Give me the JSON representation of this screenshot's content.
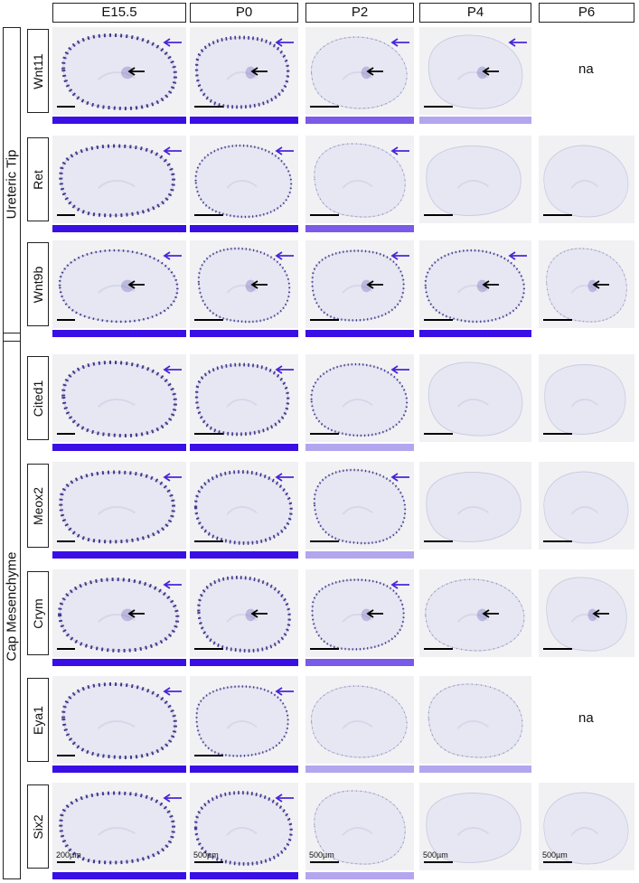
{
  "colors": {
    "strong": "#3a0fe6",
    "medium": "#7a5ae8",
    "weak": "#b3a6ef",
    "blue_arrow": "#4a26d8",
    "black_arrow": "#000000",
    "panel_bg": "#f1f1f4"
  },
  "columns": [
    "E15.5",
    "P0",
    "P2",
    "P4",
    "P6"
  ],
  "groups": [
    {
      "label": "Ureteric Tip"
    },
    {
      "label": "Cap Mesenchyme"
    }
  ],
  "rows": [
    {
      "gene": "Wnt11",
      "cells": [
        {
          "bar": "strong",
          "blue_arrow": true,
          "black_arrow": true,
          "signal": "strong",
          "scale": true
        },
        {
          "bar": "strong",
          "blue_arrow": true,
          "black_arrow": true,
          "signal": "strong",
          "scale": true
        },
        {
          "bar": "medium",
          "blue_arrow": true,
          "black_arrow": true,
          "signal": "faint",
          "scale": true
        },
        {
          "bar": "weak",
          "blue_arrow": true,
          "black_arrow": true,
          "signal": "none",
          "scale": true
        },
        {
          "na": "na"
        }
      ]
    },
    {
      "gene": "Ret",
      "cells": [
        {
          "bar": "strong",
          "blue_arrow": true,
          "signal": "strong",
          "scale": true
        },
        {
          "bar": "strong",
          "blue_arrow": true,
          "signal": "medium",
          "scale": true
        },
        {
          "bar": "medium",
          "blue_arrow": true,
          "signal": "faint",
          "scale": true
        },
        {
          "bar": null,
          "signal": "none",
          "scale": true
        },
        {
          "bar": null,
          "signal": "none",
          "scale": true
        }
      ]
    },
    {
      "gene": "Wnt9b",
      "cells": [
        {
          "bar": "strong",
          "blue_arrow": true,
          "black_arrow": true,
          "signal": "medium",
          "scale": true
        },
        {
          "bar": "strong",
          "blue_arrow": true,
          "black_arrow": true,
          "signal": "medium",
          "scale": true
        },
        {
          "bar": "strong",
          "blue_arrow": true,
          "black_arrow": true,
          "signal": "medium",
          "scale": true
        },
        {
          "bar": "strong",
          "blue_arrow": true,
          "black_arrow": true,
          "signal": "medium",
          "scale": true
        },
        {
          "bar": null,
          "black_arrow": true,
          "signal": "faint",
          "scale": true
        }
      ]
    },
    {
      "gene": "Cited1",
      "cells": [
        {
          "bar": "strong",
          "blue_arrow": true,
          "signal": "strong",
          "scale": true
        },
        {
          "bar": "strong",
          "blue_arrow": true,
          "signal": "strong",
          "scale": true
        },
        {
          "bar": "weak",
          "blue_arrow": true,
          "signal": "medium",
          "scale": true
        },
        {
          "bar": null,
          "signal": "none",
          "scale": true
        },
        {
          "bar": null,
          "signal": "none",
          "scale": true
        }
      ]
    },
    {
      "gene": "Meox2",
      "cells": [
        {
          "bar": "strong",
          "blue_arrow": true,
          "signal": "strong",
          "scale": true
        },
        {
          "bar": "strong",
          "blue_arrow": true,
          "signal": "strong",
          "scale": true
        },
        {
          "bar": "weak",
          "blue_arrow": true,
          "signal": "medium",
          "scale": true
        },
        {
          "bar": null,
          "signal": "none",
          "scale": true
        },
        {
          "bar": null,
          "signal": "none",
          "scale": true
        }
      ]
    },
    {
      "gene": "Crym",
      "cells": [
        {
          "bar": "strong",
          "blue_arrow": true,
          "black_arrow": true,
          "signal": "strong",
          "scale": true
        },
        {
          "bar": "strong",
          "black_arrow": true,
          "signal": "strong",
          "scale": true
        },
        {
          "bar": "medium",
          "blue_arrow": true,
          "black_arrow": true,
          "signal": "medium",
          "scale": true
        },
        {
          "bar": null,
          "black_arrow": true,
          "signal": "faint",
          "scale": true
        },
        {
          "bar": null,
          "black_arrow": true,
          "signal": "none",
          "scale": true
        }
      ]
    },
    {
      "gene": "Eya1",
      "cells": [
        {
          "bar": "strong",
          "blue_arrow": true,
          "signal": "strong",
          "scale": true
        },
        {
          "bar": "strong",
          "blue_arrow": true,
          "signal": "medium",
          "scale": true
        },
        {
          "bar": "weak",
          "signal": "faint",
          "scale": false
        },
        {
          "bar": "weak",
          "signal": "faint",
          "scale": false
        },
        {
          "na": "na"
        }
      ]
    },
    {
      "gene": "Six2",
      "cells": [
        {
          "bar": "strong",
          "blue_arrow": true,
          "signal": "strong",
          "scale": true,
          "scale_label": "200µm"
        },
        {
          "bar": "strong",
          "blue_arrow": true,
          "signal": "strong",
          "scale": true,
          "scale_label": "500µm"
        },
        {
          "bar": "weak",
          "signal": "faint",
          "scale": true,
          "scale_label": "500µm"
        },
        {
          "bar": null,
          "signal": "none",
          "scale": true,
          "scale_label": "500µm"
        },
        {
          "bar": null,
          "signal": "none",
          "scale": true,
          "scale_label": "500µm"
        }
      ]
    }
  ]
}
